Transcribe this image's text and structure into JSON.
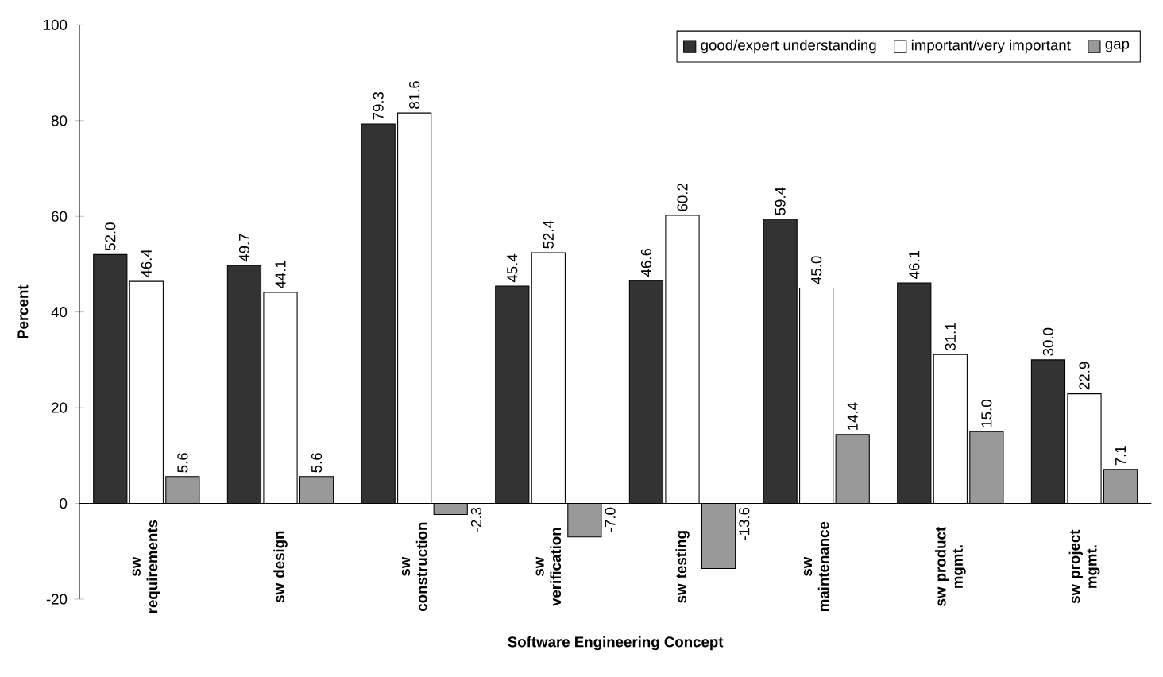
{
  "chart_data": {
    "type": "bar",
    "xlabel": "Software Engineering Concept",
    "ylabel": "Percent",
    "categories": [
      "sw requirements",
      "sw design",
      "sw construction",
      "sw verification",
      "sw testing",
      "sw maintenance",
      "sw product mgmt.",
      "sw project mgmt."
    ],
    "series": [
      {
        "name": "good/expert understanding",
        "color": "#333333",
        "values": [
          52.0,
          49.7,
          79.3,
          45.4,
          46.6,
          59.4,
          46.1,
          30.0
        ],
        "value_labels": [
          "52.0",
          "49.7",
          "79.3",
          "45.4",
          "46.6",
          "59.4",
          "46.1",
          "30.0"
        ]
      },
      {
        "name": "important/very important",
        "color": "#ffffff",
        "values": [
          46.4,
          44.1,
          81.6,
          52.4,
          60.2,
          45.0,
          31.1,
          22.9
        ],
        "value_labels": [
          "46.4",
          "44.1",
          "81.6",
          "52.4",
          "60.2",
          "45.0",
          "31.1",
          "22.9"
        ]
      },
      {
        "name": "gap",
        "color": "#999999",
        "values": [
          5.6,
          5.6,
          -2.3,
          -7.0,
          -13.6,
          14.4,
          15.0,
          7.1
        ],
        "value_labels": [
          "5.6",
          "5.6",
          "-2.3",
          "-7.0",
          "-13.6",
          "14.4",
          "15.0",
          "7.1"
        ]
      }
    ],
    "ylim": [
      -20,
      100
    ],
    "yticks": [
      -20,
      0,
      20,
      40,
      60,
      80,
      100
    ],
    "legend": "top right"
  }
}
